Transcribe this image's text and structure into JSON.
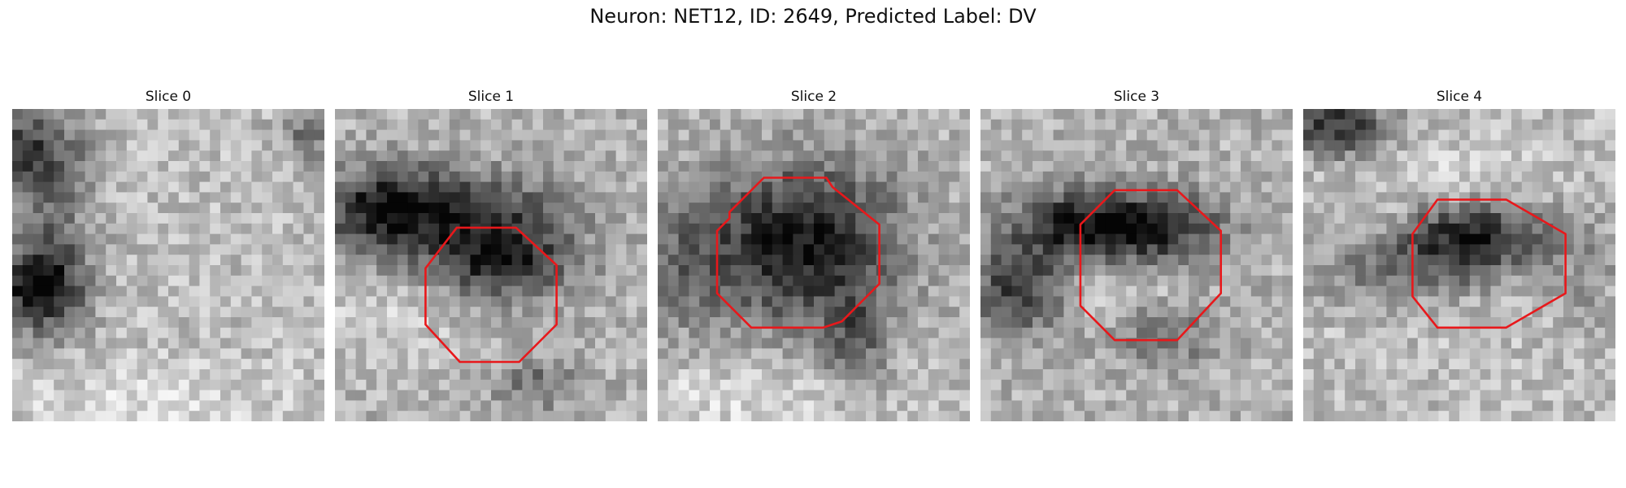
{
  "figure": {
    "title": "Neuron: NET12, ID: 2649, Predicted Label: DV",
    "outline_color": "#e8181b",
    "colormap": "grayscale",
    "grid_size": 30
  },
  "panels": [
    {
      "title": "Slice 0",
      "has_outline": false
    },
    {
      "title": "Slice 1",
      "has_outline": true
    },
    {
      "title": "Slice 2",
      "has_outline": true
    },
    {
      "title": "Slice 3",
      "has_outline": true
    },
    {
      "title": "Slice 4",
      "has_outline": true
    }
  ]
}
